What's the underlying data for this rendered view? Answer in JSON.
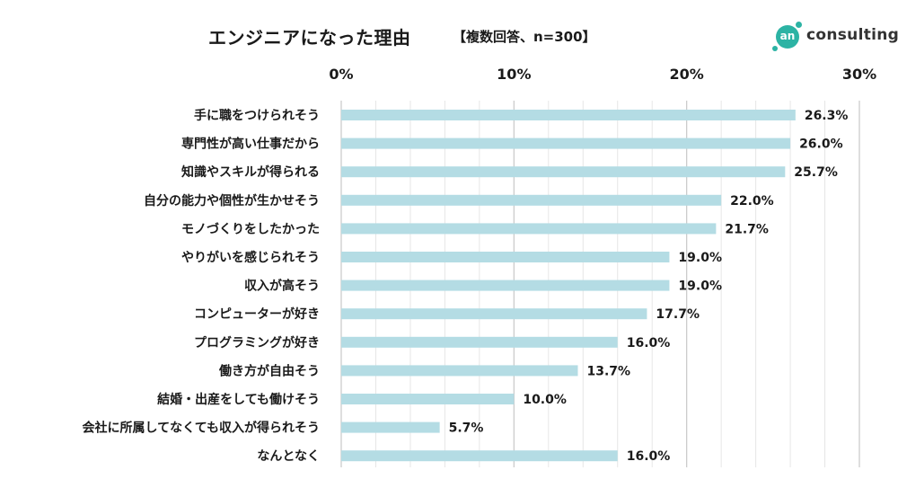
{
  "header": {
    "title": "エンジニアになった理由",
    "subtitle": "【複数回答、n=300】"
  },
  "logo": {
    "mark_text": "an",
    "text": "consulting",
    "color": "#2cb3a4"
  },
  "chart_data": {
    "type": "bar",
    "orientation": "horizontal",
    "title": "エンジニアになった理由",
    "subtitle": "【複数回答、n=300】",
    "xlim": [
      0,
      30
    ],
    "x_ticks": [
      0,
      10,
      20,
      30
    ],
    "x_tick_labels": [
      "0%",
      "10%",
      "20%",
      "30%"
    ],
    "x_axis_position": "top",
    "grid": true,
    "bar_color": "#b4dce4",
    "categories": [
      "手に職をつけられそう",
      "専門性が高い仕事だから",
      "知識やスキルが得られる",
      "自分の能力や個性が生かせそう",
      "モノづくりをしたかった",
      "やりがいを感じられそう",
      "収入が高そう",
      "コンピューターが好き",
      "プログラミングが好き",
      "働き方が自由そう",
      "結婚・出産をしても働けそう",
      "会社に所属してなくても収入が得られそう",
      "なんとなく"
    ],
    "values": [
      26.3,
      26.0,
      25.7,
      22.0,
      21.7,
      19.0,
      19.0,
      17.7,
      16.0,
      13.7,
      10.0,
      5.7,
      16.0
    ],
    "value_labels": [
      "26.3%",
      "26.0%",
      "25.7%",
      "22.0%",
      "21.7%",
      "19.0%",
      "19.0%",
      "17.7%",
      "16.0%",
      "13.7%",
      "10.0%",
      "5.7%",
      "16.0%"
    ]
  }
}
